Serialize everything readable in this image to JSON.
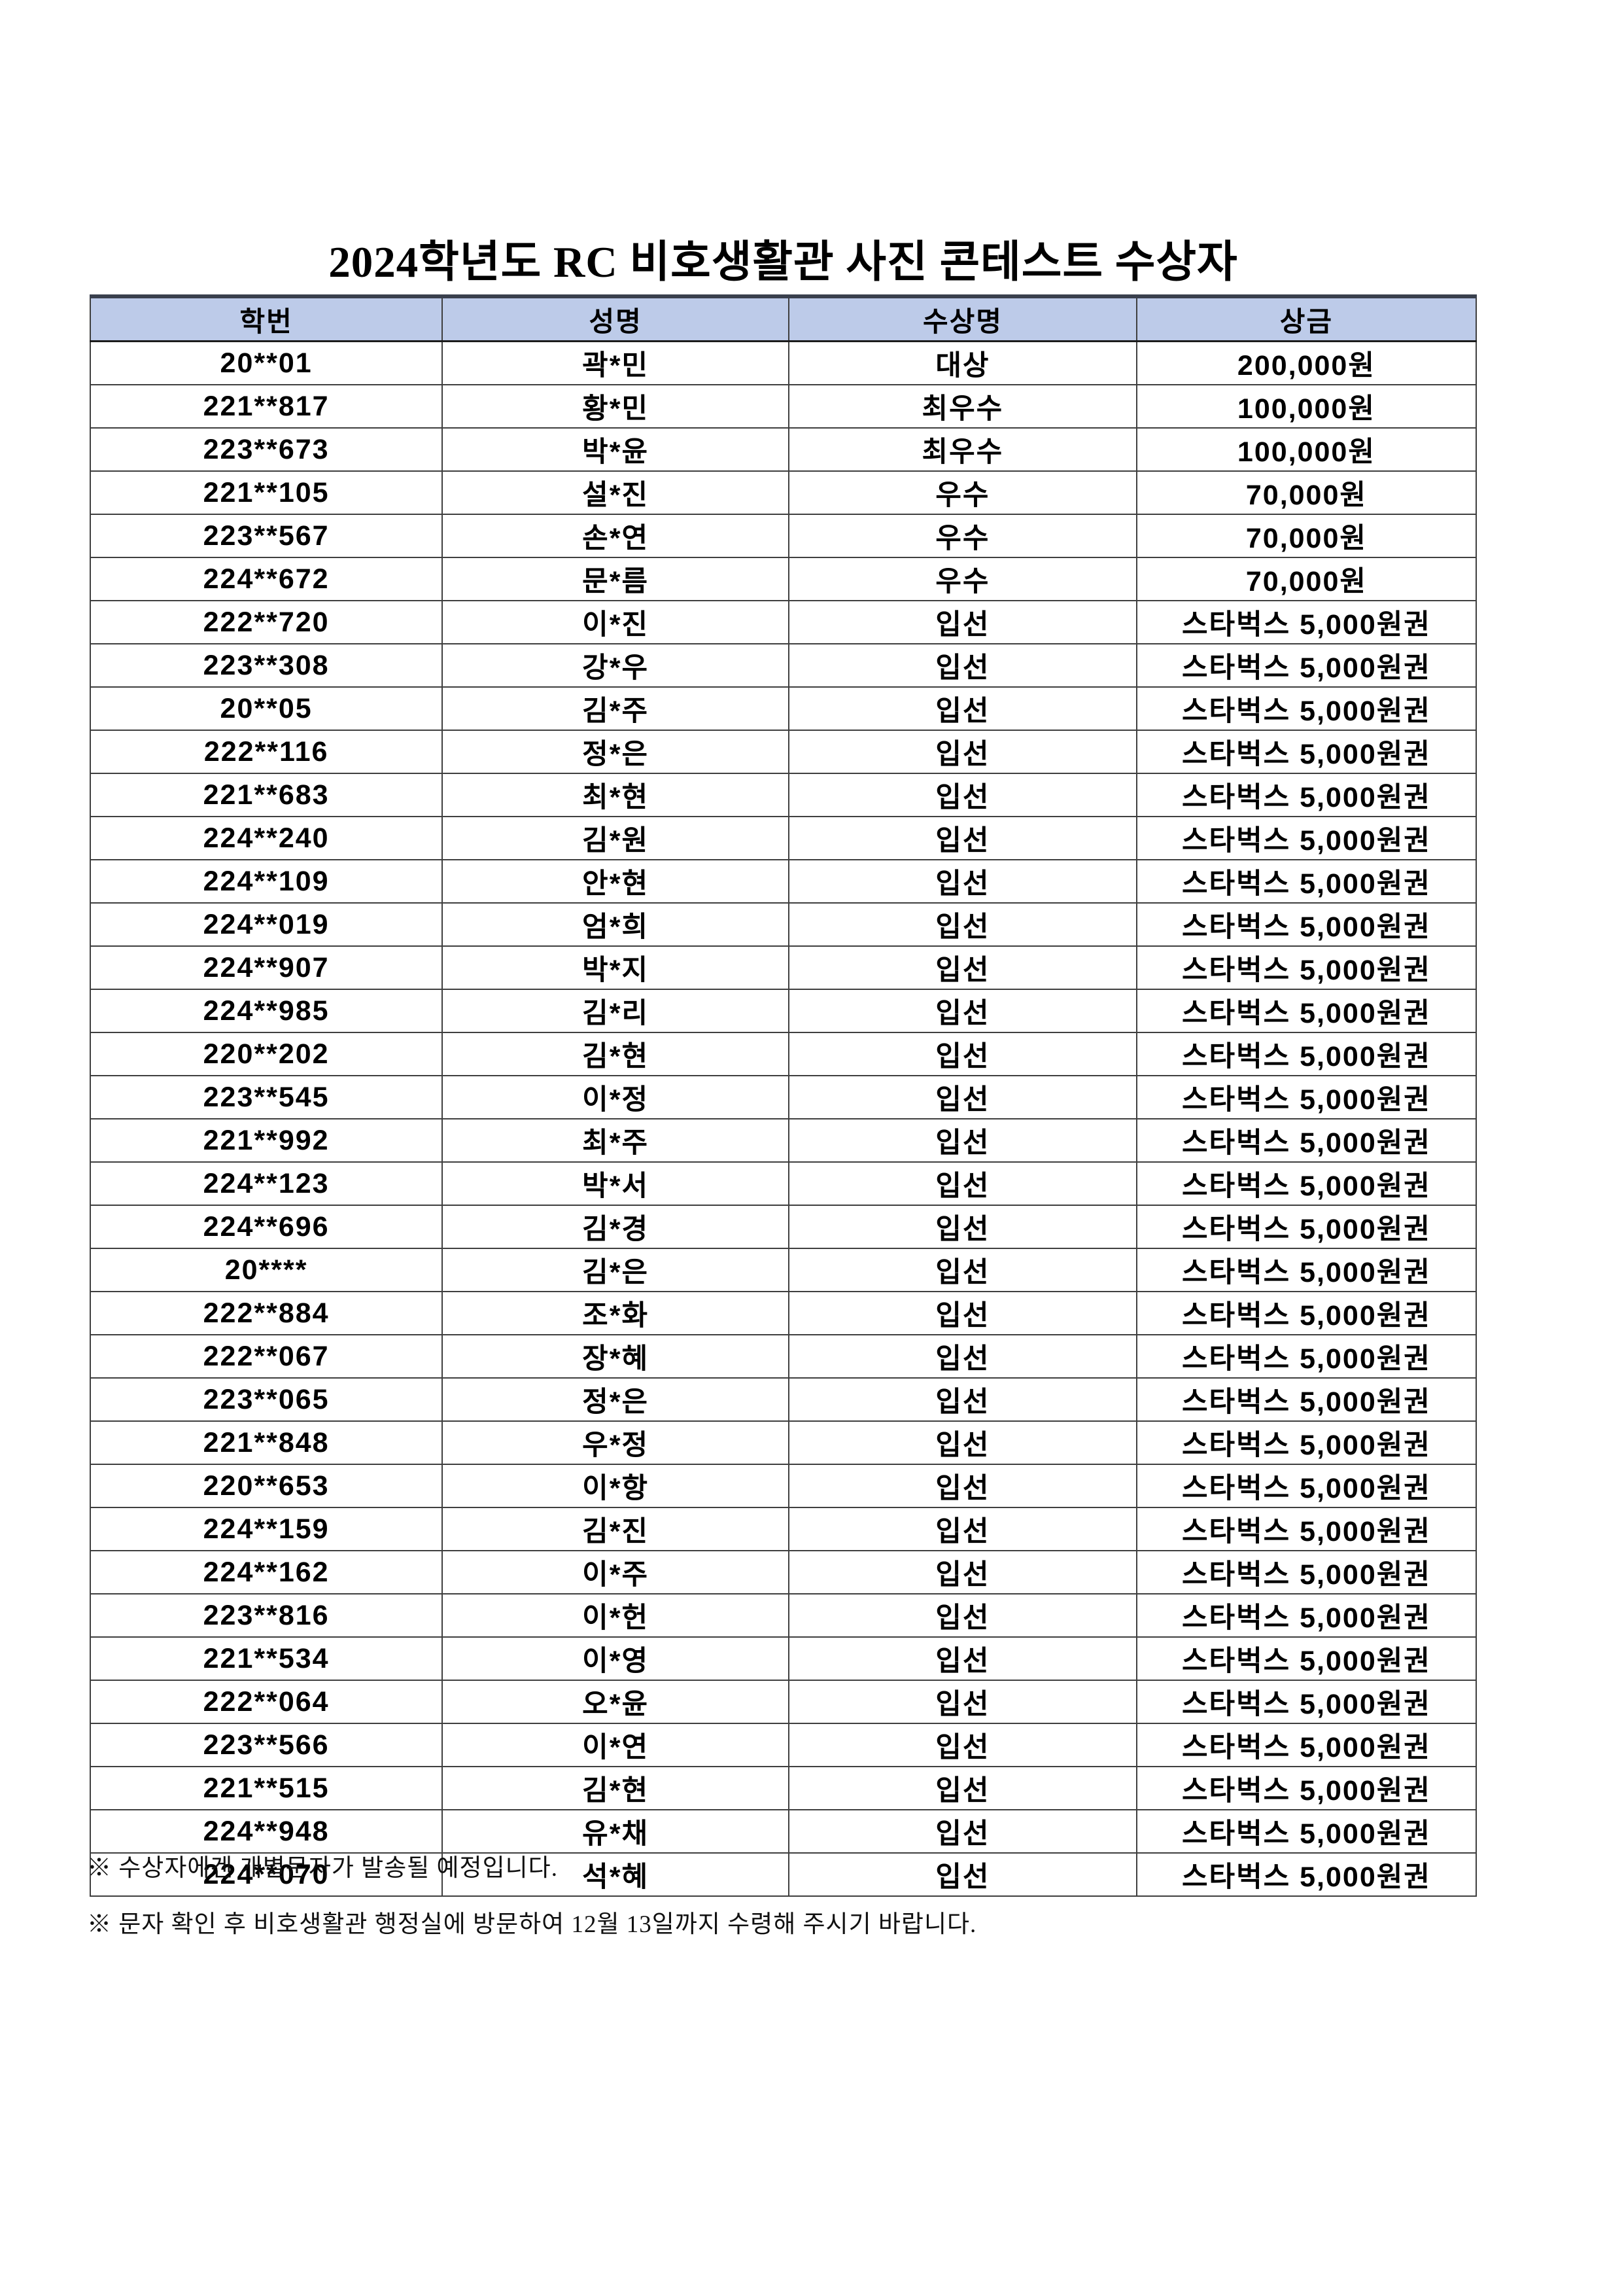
{
  "document": {
    "title": "2024학년도 RC 비호생활관 사진 콘테스트 수상자"
  },
  "table": {
    "columns": [
      "학번",
      "성명",
      "수상명",
      "상금"
    ],
    "rows": [
      [
        "20**01",
        "곽*민",
        "대상",
        "200,000원"
      ],
      [
        "221**817",
        "황*민",
        "최우수",
        "100,000원"
      ],
      [
        "223**673",
        "박*윤",
        "최우수",
        "100,000원"
      ],
      [
        "221**105",
        "설*진",
        "우수",
        "70,000원"
      ],
      [
        "223**567",
        "손*연",
        "우수",
        "70,000원"
      ],
      [
        "224**672",
        "문*름",
        "우수",
        "70,000원"
      ],
      [
        "222**720",
        "이*진",
        "입선",
        "스타벅스 5,000원권"
      ],
      [
        "223**308",
        "강*우",
        "입선",
        "스타벅스 5,000원권"
      ],
      [
        "20**05",
        "김*주",
        "입선",
        "스타벅스 5,000원권"
      ],
      [
        "222**116",
        "정*은",
        "입선",
        "스타벅스 5,000원권"
      ],
      [
        "221**683",
        "최*현",
        "입선",
        "스타벅스 5,000원권"
      ],
      [
        "224**240",
        "김*원",
        "입선",
        "스타벅스 5,000원권"
      ],
      [
        "224**109",
        "안*현",
        "입선",
        "스타벅스 5,000원권"
      ],
      [
        "224**019",
        "엄*희",
        "입선",
        "스타벅스 5,000원권"
      ],
      [
        "224**907",
        "박*지",
        "입선",
        "스타벅스 5,000원권"
      ],
      [
        "224**985",
        "김*리",
        "입선",
        "스타벅스 5,000원권"
      ],
      [
        "220**202",
        "김*현",
        "입선",
        "스타벅스 5,000원권"
      ],
      [
        "223**545",
        "이*정",
        "입선",
        "스타벅스 5,000원권"
      ],
      [
        "221**992",
        "최*주",
        "입선",
        "스타벅스 5,000원권"
      ],
      [
        "224**123",
        "박*서",
        "입선",
        "스타벅스 5,000원권"
      ],
      [
        "224**696",
        "김*경",
        "입선",
        "스타벅스 5,000원권"
      ],
      [
        "20****",
        "김*은",
        "입선",
        "스타벅스 5,000원권"
      ],
      [
        "222**884",
        "조*화",
        "입선",
        "스타벅스 5,000원권"
      ],
      [
        "222**067",
        "장*혜",
        "입선",
        "스타벅스 5,000원권"
      ],
      [
        "223**065",
        "정*은",
        "입선",
        "스타벅스 5,000원권"
      ],
      [
        "221**848",
        "우*정",
        "입선",
        "스타벅스 5,000원권"
      ],
      [
        "220**653",
        "이*항",
        "입선",
        "스타벅스 5,000원권"
      ],
      [
        "224**159",
        "김*진",
        "입선",
        "스타벅스 5,000원권"
      ],
      [
        "224**162",
        "이*주",
        "입선",
        "스타벅스 5,000원권"
      ],
      [
        "223**816",
        "이*헌",
        "입선",
        "스타벅스 5,000원권"
      ],
      [
        "221**534",
        "이*영",
        "입선",
        "스타벅스 5,000원권"
      ],
      [
        "222**064",
        "오*윤",
        "입선",
        "스타벅스 5,000원권"
      ],
      [
        "223**566",
        "이*연",
        "입선",
        "스타벅스 5,000원권"
      ],
      [
        "221**515",
        "김*현",
        "입선",
        "스타벅스 5,000원권"
      ],
      [
        "224**948",
        "유*채",
        "입선",
        "스타벅스 5,000원권"
      ],
      [
        "224**070",
        "석*혜",
        "입선",
        "스타벅스 5,000원권"
      ]
    ]
  },
  "notes": [
    "※ 수상자에겐 개별문자가 발송될 예정입니다.",
    "※ 문자 확인 후 비호생활관 행정실에 방문하여 12월 13일까지 수령해 주시기 바랍니다."
  ],
  "colors": {
    "header_bg": "#bdcbe9",
    "border": "#3f3f3f",
    "top_border": "#39404d",
    "text": "#000000"
  }
}
